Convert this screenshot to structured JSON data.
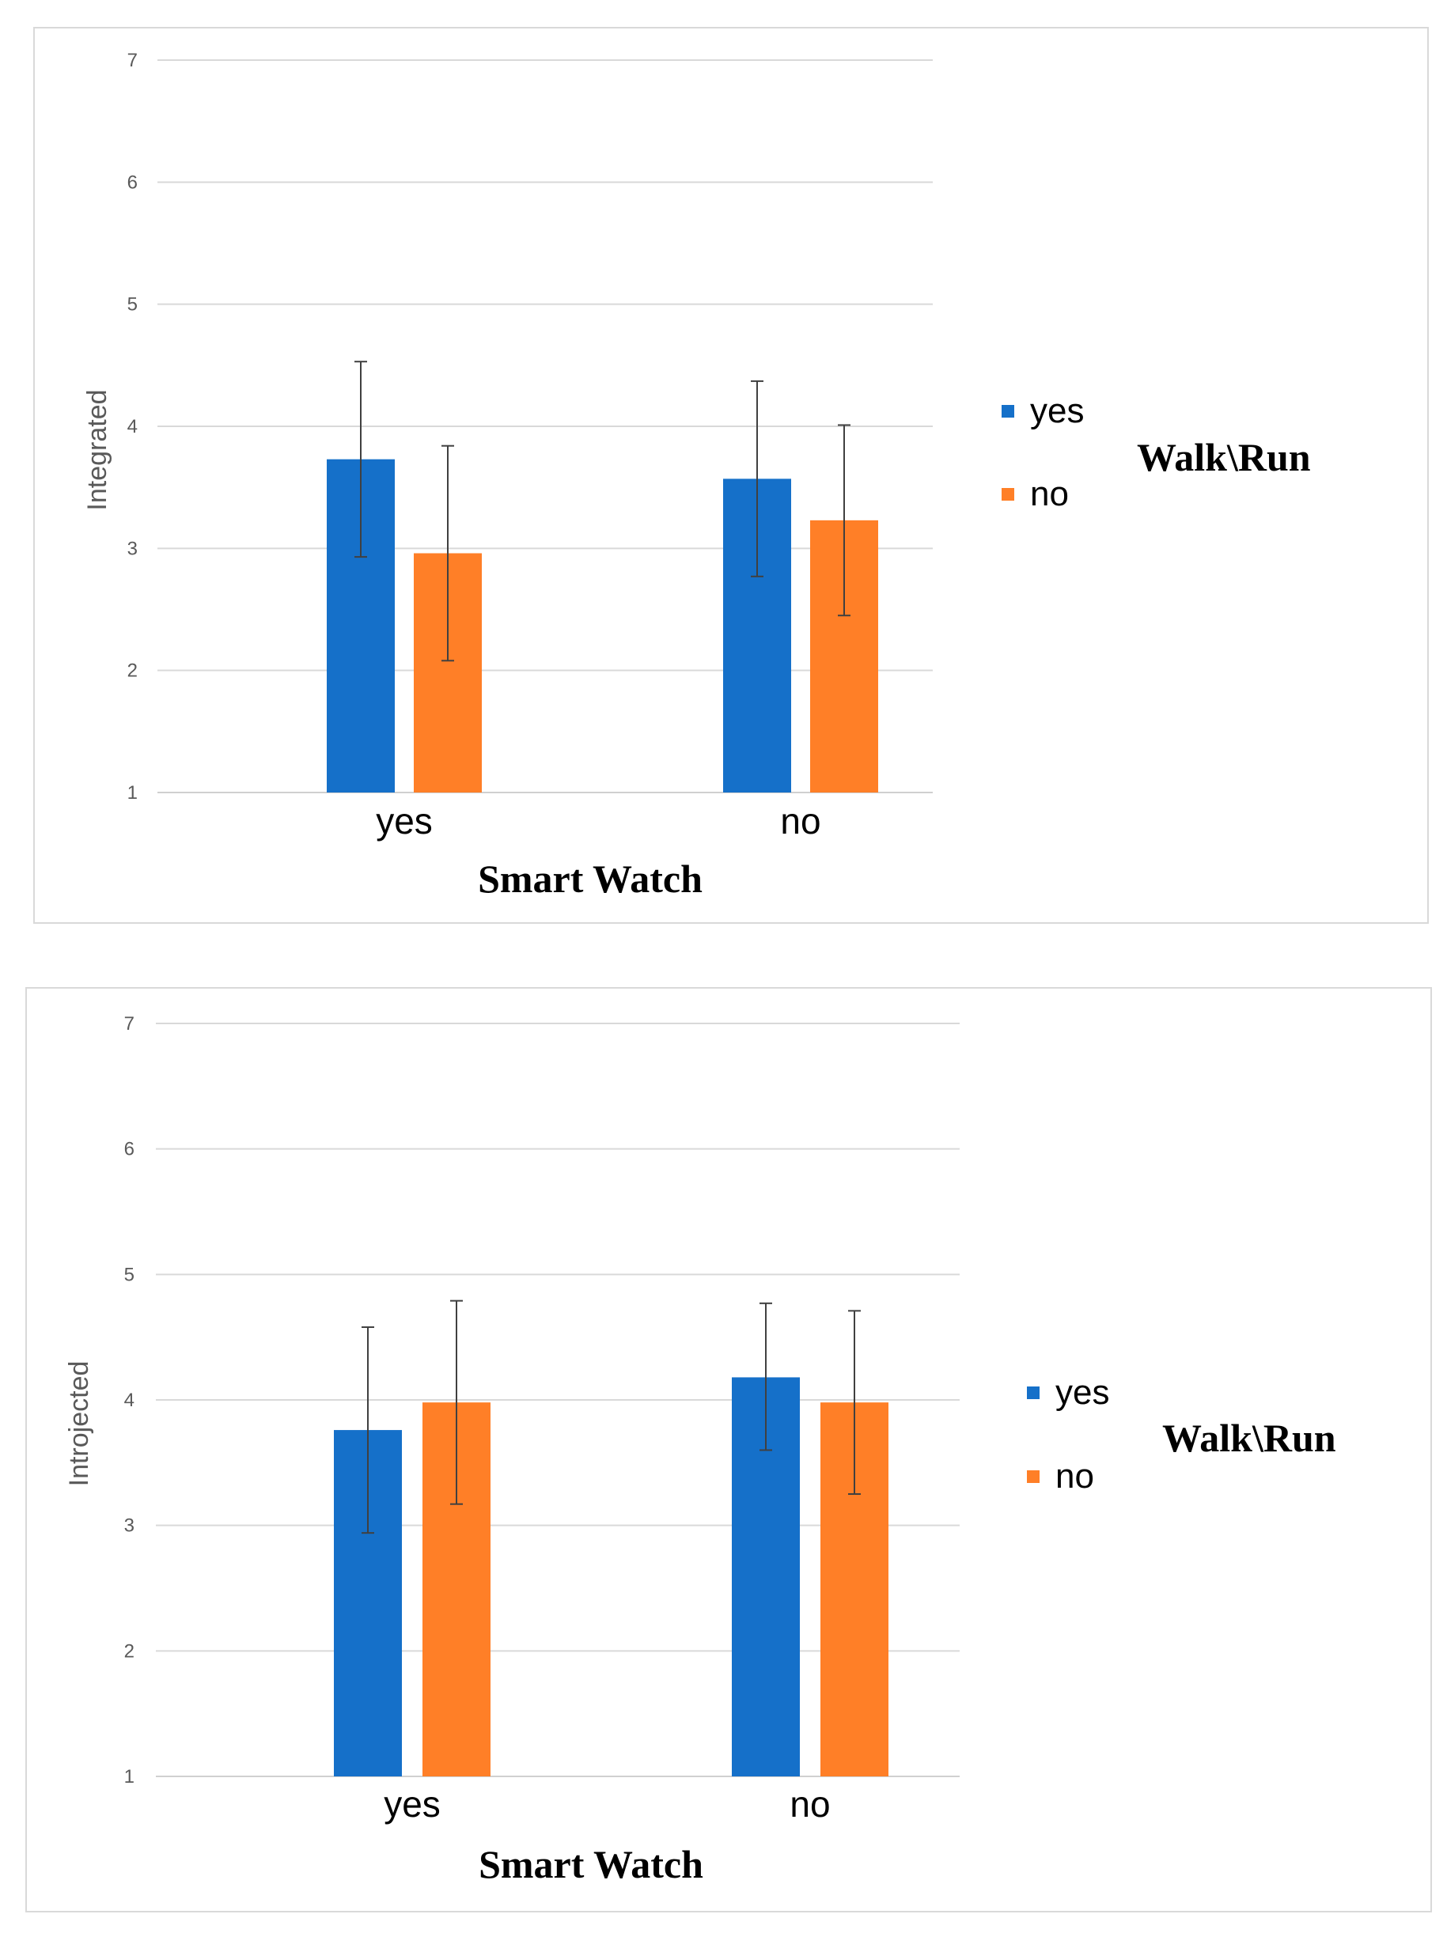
{
  "chart_data": [
    {
      "type": "bar",
      "categories": [
        "yes",
        "no"
      ],
      "series": [
        {
          "name": "yes",
          "color": "#1570c9",
          "values": [
            3.73,
            3.57
          ],
          "error_low": [
            2.93,
            2.77
          ],
          "error_high": [
            4.53,
            4.37
          ]
        },
        {
          "name": "no",
          "color": "#ff7f27",
          "values": [
            2.96,
            3.23
          ],
          "error_low": [
            2.08,
            2.45
          ],
          "error_high": [
            3.84,
            4.01
          ]
        }
      ],
      "yticks": [
        "1",
        "2",
        "3",
        "4",
        "5",
        "6",
        "7"
      ],
      "ylim": [
        1,
        7
      ],
      "xlabel": "Smart Watch",
      "ylabel": "Integrated",
      "legend_title": "Walk\\Run",
      "legend": [
        "yes",
        "no"
      ],
      "grid": true
    },
    {
      "type": "bar",
      "categories": [
        "yes",
        "no"
      ],
      "series": [
        {
          "name": "yes",
          "color": "#1570c9",
          "values": [
            3.76,
            4.18
          ],
          "error_low": [
            2.94,
            3.6
          ],
          "error_high": [
            4.58,
            4.77
          ]
        },
        {
          "name": "no",
          "color": "#ff7f27",
          "values": [
            3.98,
            3.98
          ],
          "error_low": [
            3.17,
            3.25
          ],
          "error_high": [
            4.79,
            4.71
          ]
        }
      ],
      "yticks": [
        "1",
        "2",
        "3",
        "4",
        "5",
        "6",
        "7"
      ],
      "ylim": [
        1,
        7
      ],
      "xlabel": "Smart Watch",
      "ylabel": "Introjected",
      "legend_title": "Walk\\Run",
      "legend": [
        "yes",
        "no"
      ],
      "grid": true
    }
  ]
}
